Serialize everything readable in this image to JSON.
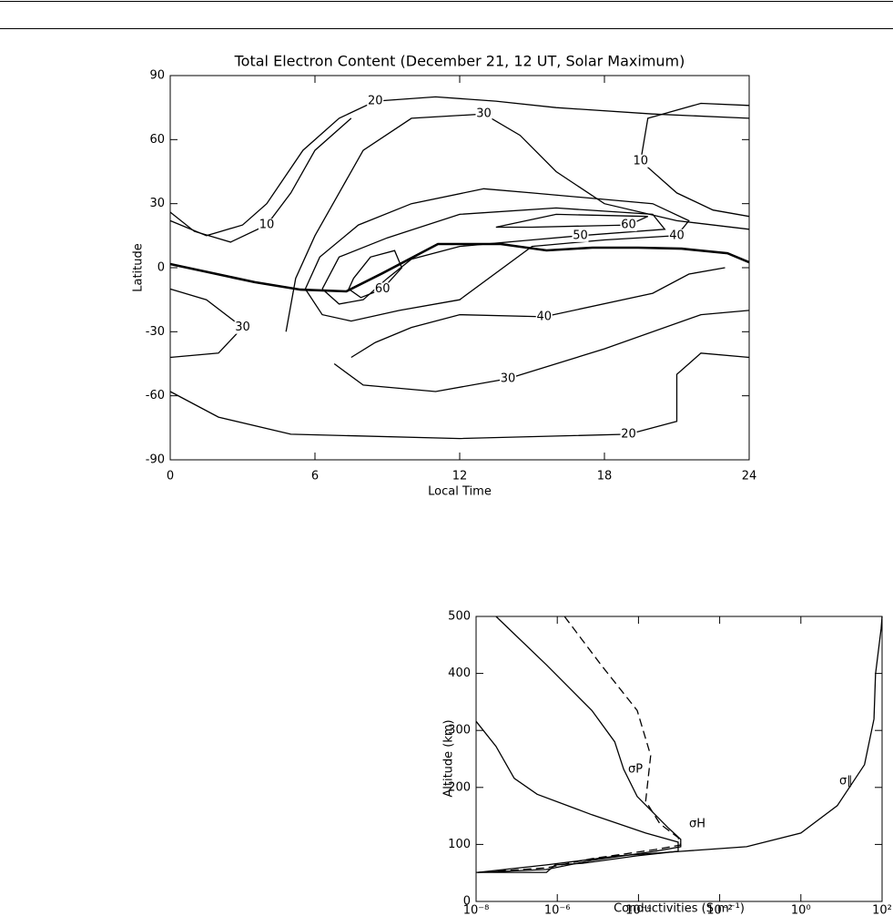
{
  "chart_data": [
    {
      "type": "contour",
      "title": "Total Electron Content (December 21, 12 UT, Solar Maximum)",
      "xlabel": "Local Time",
      "ylabel": "Latitude",
      "xlim": [
        0,
        24
      ],
      "ylim": [
        -90,
        90
      ],
      "xticks": [
        0,
        6,
        12,
        18,
        24
      ],
      "yticks": [
        -90,
        -60,
        -30,
        0,
        30,
        60,
        90
      ],
      "color": "#000000",
      "contours": [
        {
          "level": 60,
          "x": [
            7.6,
            8.3,
            9.3,
            9.6,
            8.8,
            7.9,
            7.4,
            7.6
          ],
          "y": [
            -5,
            5,
            8,
            0,
            -10,
            -14,
            -10,
            -5
          ]
        },
        {
          "level": 60,
          "x": [
            13.5,
            16,
            19.8,
            19,
            15,
            13.5
          ],
          "y": [
            19,
            25,
            24,
            20,
            19,
            19
          ]
        },
        {
          "level": 50,
          "x": [
            6.3,
            7,
            9,
            12,
            16,
            20,
            20.5,
            17,
            15,
            12,
            10,
            9,
            8,
            7,
            6.3
          ],
          "y": [
            -10,
            5,
            14,
            25,
            28,
            25,
            18,
            15,
            13,
            10,
            4,
            -5,
            -15,
            -17,
            -10
          ]
        },
        {
          "level": 40,
          "x": [
            5.6,
            6.2,
            7.8,
            10,
            13,
            15,
            20,
            21.5,
            21,
            18,
            15,
            12,
            9.5,
            7.5,
            6.3,
            5.6
          ],
          "y": [
            -10,
            5,
            20,
            30,
            37,
            35,
            30,
            22,
            15,
            13,
            10,
            -15,
            -20,
            -25,
            -22,
            -10
          ]
        },
        {
          "level": 40,
          "x": [
            7.5,
            8.5,
            10,
            12,
            15.5,
            20,
            21.5,
            23
          ],
          "y": [
            -42,
            -35,
            -28,
            -22,
            -23,
            -12,
            -3,
            0
          ]
        },
        {
          "level": 30,
          "x": [
            4.8,
            5.2,
            6,
            7,
            8,
            10,
            13,
            14.5,
            16,
            18,
            21,
            24
          ],
          "y": [
            -30,
            -5,
            15,
            35,
            55,
            70,
            72,
            62,
            45,
            30,
            22,
            18
          ]
        },
        {
          "level": 30,
          "x": [
            6.8,
            8,
            11,
            14,
            18,
            22,
            24
          ],
          "y": [
            -45,
            -55,
            -58,
            -52,
            -38,
            -22,
            -20
          ]
        },
        {
          "level": 30,
          "x": [
            0,
            1.5,
            3,
            2,
            0
          ],
          "y": [
            -10,
            -15,
            -28,
            -40,
            -42
          ]
        },
        {
          "level": 20,
          "x": [
            0,
            1.5,
            3,
            4,
            5.5,
            7,
            8.5,
            11,
            13.5,
            16,
            20,
            24
          ],
          "y": [
            22,
            15,
            20,
            30,
            55,
            70,
            78,
            80,
            78,
            75,
            72,
            70
          ]
        },
        {
          "level": 20,
          "x": [
            0,
            2,
            5,
            12,
            19,
            21,
            21,
            22,
            24
          ],
          "y": [
            -58,
            -70,
            -78,
            -80,
            -78,
            -72,
            -50,
            -40,
            -42
          ]
        },
        {
          "level": 10,
          "x": [
            0,
            1,
            2.5,
            4,
            5,
            6,
            7.5
          ],
          "y": [
            26,
            17,
            12,
            20,
            35,
            55,
            70
          ]
        },
        {
          "level": 10,
          "x": [
            24,
            22,
            19.8,
            19.5,
            21,
            22.5,
            24
          ],
          "y": [
            76,
            77,
            70,
            50,
            35,
            27,
            24
          ]
        }
      ],
      "equator_line": {
        "x": [
          0,
          3.5,
          5.4,
          7.3,
          8.8,
          11.1,
          13.7,
          15.6,
          17.5,
          19.4,
          21.2,
          23.1,
          24
        ],
        "y": [
          1.7,
          -6.8,
          -10.3,
          -11.1,
          -2.6,
          11.1,
          11.1,
          8.1,
          9.4,
          9.4,
          8.9,
          6.8,
          2.5
        ]
      }
    },
    {
      "type": "line",
      "xlabel": "Conductivities (S m⁻¹)",
      "ylabel": "Altitude (km)",
      "xscale": "log",
      "xlim": [
        1e-08,
        100
      ],
      "ylim": [
        0,
        500
      ],
      "xticks": [
        {
          "value": 1e-08,
          "label": "10⁻⁸"
        },
        {
          "value": 1e-06,
          "label": "10⁻⁶"
        },
        {
          "value": 0.0001,
          "label": "10⁻⁴"
        },
        {
          "value": 0.01,
          "label": "10⁻²"
        },
        {
          "value": 1,
          "label": "10⁰"
        },
        {
          "value": 100,
          "label": "10²"
        }
      ],
      "yticks": [
        0,
        100,
        200,
        300,
        400,
        500
      ],
      "series": [
        {
          "name": "σP",
          "color": "#000000",
          "dash": false,
          "x": [
            3.1e-08,
            5.4e-07,
            7.1e-06,
            2.6e-05,
            4.3e-05,
            9.3e-05,
            0.00056,
            0.0011,
            0.0011,
            0.00026,
            7.1e-06,
            5.4e-07,
            1.1e-08
          ],
          "y": [
            500,
            415,
            335,
            280,
            232,
            184,
            128,
            109,
            96,
            88,
            72,
            56,
            51
          ]
        },
        {
          "color": "#000000",
          "dash": true,
          "x": [
            1.5e-06,
            1.2e-05,
            9.3e-05,
            0.0002,
            0.00015,
            0.00034,
            0.00095,
            0.0011,
            0.00026,
            7.1e-06,
            5.4e-07,
            1.1e-08
          ],
          "y": [
            500,
            415,
            335,
            256,
            176,
            136,
            112,
            99,
            91,
            75,
            59,
            51
          ]
        },
        {
          "name": "σH",
          "color": "#000000",
          "dash": false,
          "x": [
            1e-08,
            3.1e-08,
            8.7e-08,
            3.2e-07,
            7.1e-06,
            0.00015,
            0.00095,
            0.00095,
            9.3e-05,
            4.2e-06,
            8.9e-07,
            5.4e-07,
            1e-08
          ],
          "y": [
            316,
            272,
            216,
            188,
            152,
            120,
            104,
            88,
            80,
            67,
            64,
            51,
            51
          ]
        },
        {
          "name": "σ∥",
          "color": "#000000",
          "dash": false,
          "x": [
            1.1e-08,
            5.4e-07,
            3.3e-05,
            0.0012,
            0.046,
            1,
            7.9,
            37,
            63,
            69,
            95,
            100
          ],
          "y": [
            51,
            64,
            80,
            88,
            96,
            120,
            168,
            240,
            320,
            399,
            479,
            500
          ]
        }
      ]
    }
  ]
}
